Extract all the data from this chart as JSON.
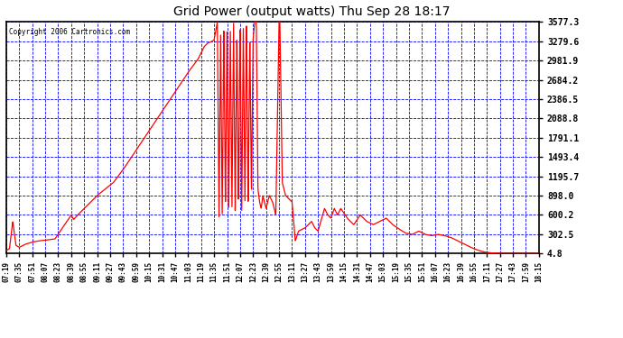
{
  "title": "Grid Power (output watts) Thu Sep 28 18:17",
  "copyright": "Copyright 2006 Cartronics.com",
  "plot_bg_color": "#ffffff",
  "fig_bg_color": "#ffffff",
  "line_color": "#ff0000",
  "grid_color": "#0000ff",
  "ytick_labels": [
    "4.8",
    "302.5",
    "600.2",
    "898.0",
    "1195.7",
    "1493.4",
    "1791.1",
    "2088.8",
    "2386.5",
    "2684.2",
    "2981.9",
    "3279.6",
    "3577.3"
  ],
  "ytick_values": [
    4.8,
    302.5,
    600.2,
    898.0,
    1195.7,
    1493.4,
    1791.1,
    2088.8,
    2386.5,
    2684.2,
    2981.9,
    3279.6,
    3577.3
  ],
  "xtick_labels": [
    "07:19",
    "07:35",
    "07:51",
    "08:07",
    "08:23",
    "08:39",
    "08:55",
    "09:11",
    "09:27",
    "09:43",
    "09:59",
    "10:15",
    "10:31",
    "10:47",
    "11:03",
    "11:19",
    "11:35",
    "11:51",
    "12:07",
    "12:23",
    "12:39",
    "12:55",
    "13:11",
    "13:27",
    "13:43",
    "13:59",
    "14:15",
    "14:31",
    "14:47",
    "15:03",
    "15:19",
    "15:35",
    "15:51",
    "16:07",
    "16:23",
    "16:39",
    "16:55",
    "17:11",
    "17:27",
    "17:43",
    "17:59",
    "18:15"
  ],
  "ymin": 4.8,
  "ymax": 3577.3,
  "figsize": [
    6.9,
    3.75
  ],
  "dpi": 100,
  "keypoints": [
    [
      439,
      50
    ],
    [
      443,
      80
    ],
    [
      447,
      500
    ],
    [
      451,
      130
    ],
    [
      455,
      100
    ],
    [
      463,
      150
    ],
    [
      471,
      180
    ],
    [
      479,
      200
    ],
    [
      487,
      210
    ],
    [
      499,
      230
    ],
    [
      519,
      600
    ],
    [
      522,
      530
    ],
    [
      527,
      600
    ],
    [
      535,
      700
    ],
    [
      551,
      900
    ],
    [
      571,
      1100
    ],
    [
      583,
      1300
    ],
    [
      599,
      1600
    ],
    [
      615,
      1900
    ],
    [
      631,
      2200
    ],
    [
      647,
      2500
    ],
    [
      663,
      2800
    ],
    [
      675,
      3000
    ],
    [
      679,
      3100
    ],
    [
      683,
      3200
    ],
    [
      687,
      3250
    ],
    [
      691,
      3270
    ],
    [
      695,
      3300
    ],
    [
      699,
      3577
    ],
    [
      701,
      500
    ],
    [
      703,
      3400
    ],
    [
      705,
      600
    ],
    [
      707,
      3500
    ],
    [
      709,
      700
    ],
    [
      711,
      3577
    ],
    [
      713,
      600
    ],
    [
      715,
      3500
    ],
    [
      717,
      700
    ],
    [
      719,
      3577
    ],
    [
      721,
      600
    ],
    [
      723,
      3400
    ],
    [
      725,
      700
    ],
    [
      727,
      3577
    ],
    [
      729,
      600
    ],
    [
      731,
      3500
    ],
    [
      733,
      800
    ],
    [
      735,
      3577
    ],
    [
      737,
      700
    ],
    [
      739,
      3400
    ],
    [
      741,
      900
    ],
    [
      743,
      3300
    ],
    [
      745,
      3577
    ],
    [
      747,
      3577
    ],
    [
      749,
      1000
    ],
    [
      751,
      800
    ],
    [
      753,
      700
    ],
    [
      755,
      900
    ],
    [
      757,
      800
    ],
    [
      759,
      700
    ],
    [
      763,
      900
    ],
    [
      767,
      800
    ],
    [
      771,
      600
    ],
    [
      775,
      3577
    ],
    [
      776,
      3577
    ],
    [
      779,
      1100
    ],
    [
      783,
      900
    ],
    [
      787,
      850
    ],
    [
      791,
      800
    ],
    [
      795,
      200
    ],
    [
      799,
      350
    ],
    [
      807,
      400
    ],
    [
      815,
      500
    ],
    [
      819,
      400
    ],
    [
      823,
      350
    ],
    [
      831,
      700
    ],
    [
      835,
      600
    ],
    [
      839,
      550
    ],
    [
      843,
      700
    ],
    [
      847,
      600
    ],
    [
      851,
      700
    ],
    [
      859,
      550
    ],
    [
      867,
      450
    ],
    [
      875,
      600
    ],
    [
      883,
      500
    ],
    [
      891,
      450
    ],
    [
      899,
      500
    ],
    [
      907,
      550
    ],
    [
      915,
      450
    ],
    [
      923,
      380
    ],
    [
      931,
      320
    ],
    [
      939,
      300
    ],
    [
      947,
      350
    ],
    [
      955,
      300
    ],
    [
      963,
      280
    ],
    [
      971,
      300
    ],
    [
      979,
      280
    ],
    [
      987,
      250
    ],
    [
      995,
      200
    ],
    [
      1003,
      150
    ],
    [
      1011,
      100
    ],
    [
      1019,
      60
    ],
    [
      1027,
      30
    ],
    [
      1035,
      15
    ],
    [
      1043,
      10
    ],
    [
      1051,
      5
    ],
    [
      1059,
      4.8
    ],
    [
      1067,
      4.8
    ],
    [
      1075,
      4.8
    ]
  ]
}
